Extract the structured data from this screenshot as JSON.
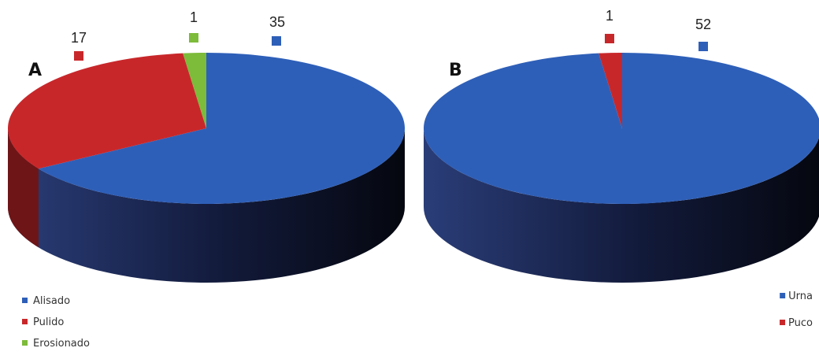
{
  "chart_data": [
    {
      "type": "pie",
      "panel_label": "A",
      "categories": [
        "Alisado",
        "Pulido",
        "Erosionado"
      ],
      "values": [
        35,
        17,
        1
      ],
      "colors": [
        "#2e5fb8",
        "#c8272a",
        "#7dbb3a"
      ],
      "legend_position": "bottom-left",
      "style": "3d"
    },
    {
      "type": "pie",
      "panel_label": "B",
      "categories": [
        "Urna",
        "Puco"
      ],
      "values": [
        52,
        1
      ],
      "colors": [
        "#2e5fb8",
        "#c8272a"
      ],
      "legend_position": "bottom-right",
      "style": "3d"
    }
  ]
}
